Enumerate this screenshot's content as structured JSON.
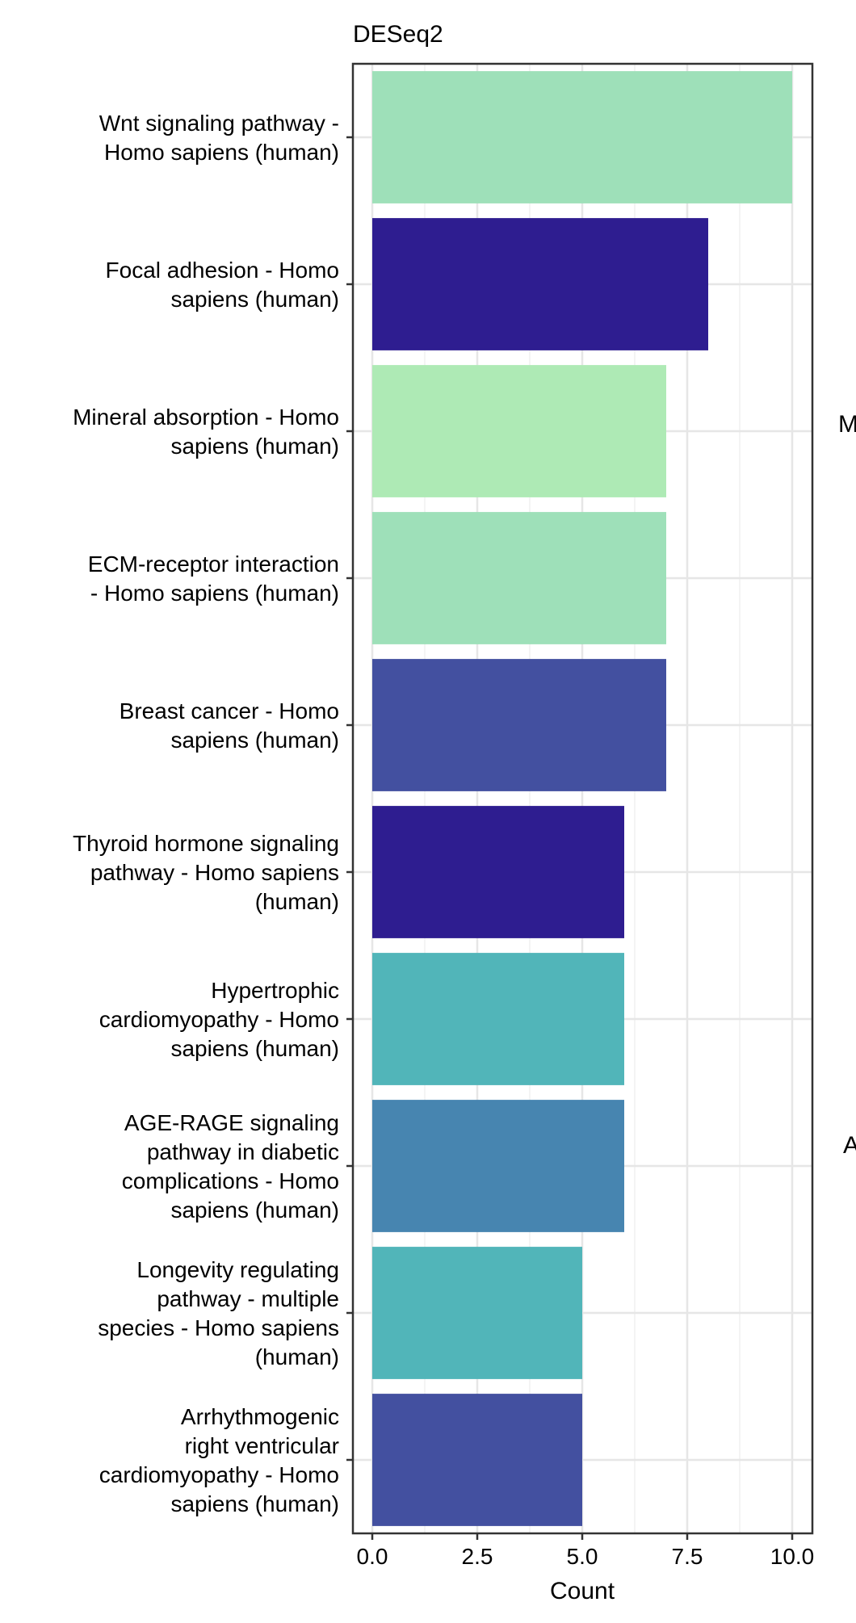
{
  "chart_data": {
    "type": "bar",
    "orientation": "horizontal",
    "title": "DESeq2",
    "xlabel": "Count",
    "ylabel": "",
    "xlim": [
      0,
      10.4
    ],
    "xticks": [
      0,
      2.5,
      5,
      7.5,
      10
    ],
    "xtick_labels": [
      "0.0",
      "2.5",
      "5.0",
      "7.5",
      "10.0"
    ],
    "grid": true,
    "categories": [
      [
        "Wnt signaling pathway -",
        "Homo sapiens (human)"
      ],
      [
        "Focal adhesion - Homo",
        "sapiens (human)"
      ],
      [
        "Mineral absorption - Homo",
        "sapiens (human)"
      ],
      [
        "ECM-receptor interaction",
        "- Homo sapiens (human)"
      ],
      [
        "Breast cancer - Homo",
        "sapiens (human)"
      ],
      [
        "Thyroid hormone signaling",
        "pathway - Homo sapiens",
        "(human)"
      ],
      [
        "Hypertrophic",
        "cardiomyopathy - Homo",
        "sapiens (human)"
      ],
      [
        "AGE-RAGE signaling",
        "pathway in diabetic",
        "complications - Homo",
        "sapiens (human)"
      ],
      [
        "Longevity regulating",
        "pathway - multiple",
        "species - Homo sapiens",
        "(human)"
      ],
      [
        "Arrhythmogenic",
        "right ventricular",
        "cardiomyopathy - Homo",
        "sapiens (human)"
      ]
    ],
    "values": [
      10,
      8,
      7,
      7,
      7,
      6,
      6,
      6,
      5,
      5
    ],
    "colors": [
      "#9ee0b9",
      "#2e1d90",
      "#aeeab5",
      "#9ee0b9",
      "#4350a0",
      "#2e1d90",
      "#51b5b9",
      "#4785b0",
      "#51b5b9",
      "#4350a0"
    ],
    "clipped_text": [
      "M",
      "A"
    ]
  }
}
